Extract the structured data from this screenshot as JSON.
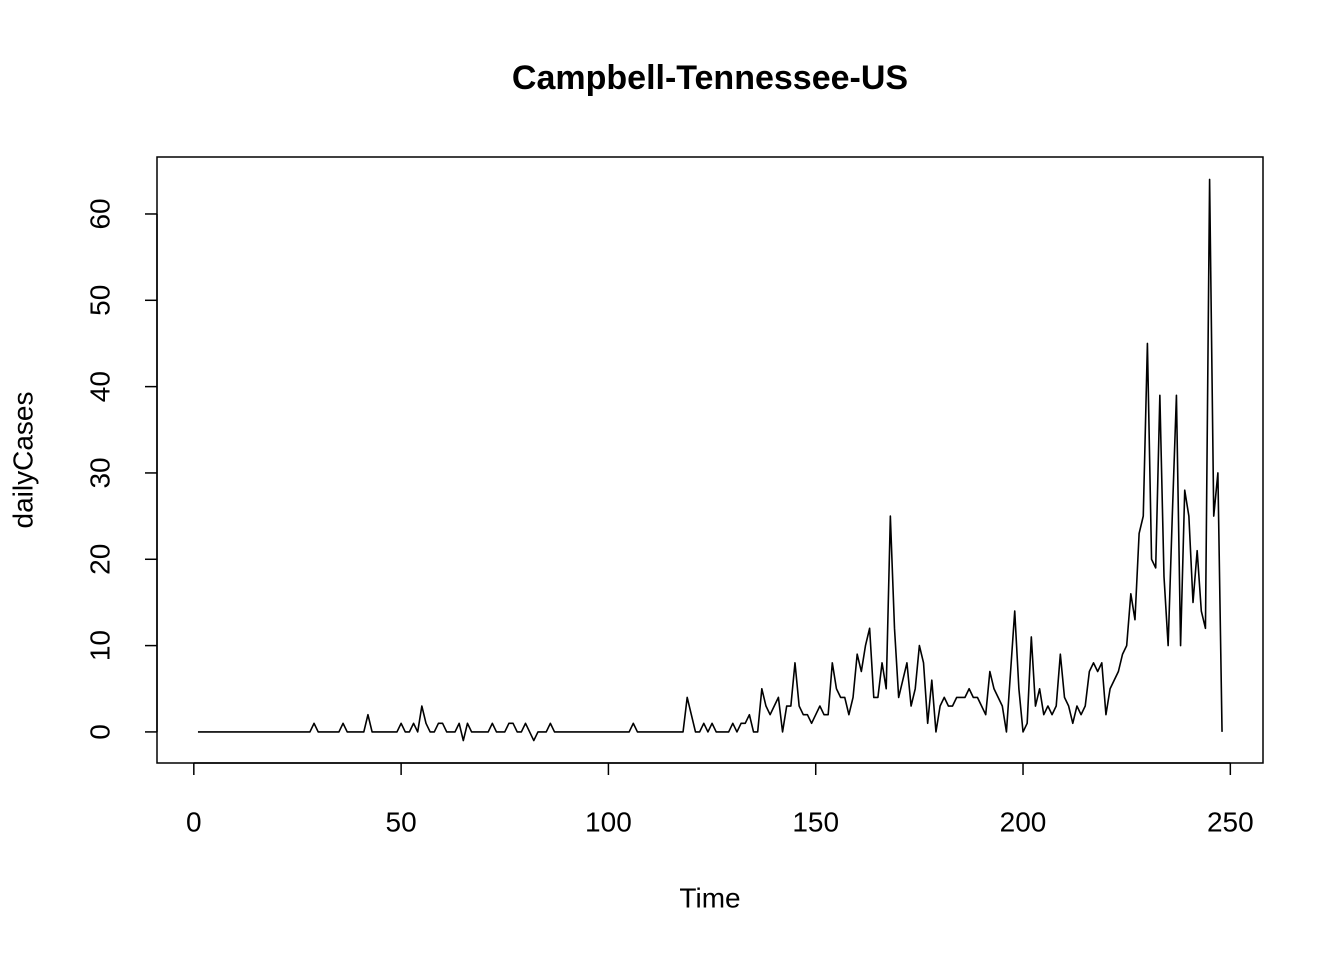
{
  "chart_data": {
    "type": "line",
    "title": "Campbell-Tennessee-US",
    "x_label": "Time",
    "y_label": "dailyCases",
    "color": "#000000",
    "x": [
      1,
      2,
      3,
      4,
      5,
      6,
      7,
      8,
      9,
      10,
      11,
      12,
      13,
      14,
      15,
      16,
      17,
      18,
      19,
      20,
      21,
      22,
      23,
      24,
      25,
      26,
      27,
      28,
      29,
      30,
      31,
      32,
      33,
      34,
      35,
      36,
      37,
      38,
      39,
      40,
      41,
      42,
      43,
      44,
      45,
      46,
      47,
      48,
      49,
      50,
      51,
      52,
      53,
      54,
      55,
      56,
      57,
      58,
      59,
      60,
      61,
      62,
      63,
      64,
      65,
      66,
      67,
      68,
      69,
      70,
      71,
      72,
      73,
      74,
      75,
      76,
      77,
      78,
      79,
      80,
      81,
      82,
      83,
      84,
      85,
      86,
      87,
      88,
      89,
      90,
      91,
      92,
      93,
      94,
      95,
      96,
      97,
      98,
      99,
      100,
      101,
      102,
      103,
      104,
      105,
      106,
      107,
      108,
      109,
      110,
      111,
      112,
      113,
      114,
      115,
      116,
      117,
      118,
      119,
      120,
      121,
      122,
      123,
      124,
      125,
      126,
      127,
      128,
      129,
      130,
      131,
      132,
      133,
      134,
      135,
      136,
      137,
      138,
      139,
      140,
      141,
      142,
      143,
      144,
      145,
      146,
      147,
      148,
      149,
      150,
      151,
      152,
      153,
      154,
      155,
      156,
      157,
      158,
      159,
      160,
      161,
      162,
      163,
      164,
      165,
      166,
      167,
      168,
      169,
      170,
      171,
      172,
      173,
      174,
      175,
      176,
      177,
      178,
      179,
      180,
      181,
      182,
      183,
      184,
      185,
      186,
      187,
      188,
      189,
      190,
      191,
      192,
      193,
      194,
      195,
      196,
      197,
      198,
      199,
      200,
      201,
      202,
      203,
      204,
      205,
      206,
      207,
      208,
      209,
      210,
      211,
      212,
      213,
      214,
      215,
      216,
      217,
      218,
      219,
      220,
      221,
      222,
      223,
      224,
      225,
      226,
      227,
      228,
      229,
      230,
      231,
      232,
      233,
      234,
      235,
      236,
      237,
      238,
      239,
      240,
      241,
      242,
      243,
      244,
      245,
      246,
      247,
      248
    ],
    "values": [
      0,
      0,
      0,
      0,
      0,
      0,
      0,
      0,
      0,
      0,
      0,
      0,
      0,
      0,
      0,
      0,
      0,
      0,
      0,
      0,
      0,
      0,
      0,
      0,
      0,
      0,
      0,
      0,
      1,
      0,
      0,
      0,
      0,
      0,
      0,
      1,
      0,
      0,
      0,
      0,
      0,
      2,
      0,
      0,
      0,
      0,
      0,
      0,
      0,
      1,
      0,
      0,
      1,
      0,
      3,
      1,
      0,
      0,
      1,
      1,
      0,
      0,
      0,
      1,
      -1,
      1,
      0,
      0,
      0,
      0,
      0,
      1,
      0,
      0,
      0,
      1,
      1,
      0,
      0,
      1,
      0,
      -1,
      0,
      0,
      0,
      1,
      0,
      0,
      0,
      0,
      0,
      0,
      0,
      0,
      0,
      0,
      0,
      0,
      0,
      0,
      0,
      0,
      0,
      0,
      0,
      1,
      0,
      0,
      0,
      0,
      0,
      0,
      0,
      0,
      0,
      0,
      0,
      0,
      4,
      2,
      0,
      0,
      1,
      0,
      1,
      0,
      0,
      0,
      0,
      1,
      0,
      1,
      1,
      2,
      0,
      0,
      5,
      3,
      2,
      3,
      4,
      0,
      3,
      3,
      8,
      3,
      2,
      2,
      1,
      2,
      3,
      2,
      2,
      8,
      5,
      4,
      4,
      2,
      4,
      9,
      7,
      10,
      12,
      4,
      4,
      8,
      5,
      25,
      12,
      4,
      6,
      8,
      3,
      5,
      10,
      8,
      1,
      6,
      0,
      3,
      4,
      3,
      3,
      4,
      4,
      4,
      5,
      4,
      4,
      3,
      2,
      7,
      5,
      4,
      3,
      0,
      7,
      14,
      5,
      0,
      1,
      11,
      3,
      5,
      2,
      3,
      2,
      3,
      9,
      4,
      3,
      1,
      3,
      2,
      3,
      7,
      8,
      7,
      8,
      2,
      5,
      6,
      7,
      9,
      10,
      16,
      13,
      23,
      25,
      45,
      20,
      19,
      39,
      18,
      10,
      25,
      39,
      10,
      28,
      25,
      15,
      21,
      14,
      12,
      64,
      25,
      30,
      0
    ],
    "xlim": [
      -8.88,
      257.88
    ],
    "xticks": [
      0,
      50,
      100,
      150,
      200,
      250
    ],
    "ylim": [
      -3.6,
      66.6
    ],
    "yticks": [
      0,
      10,
      20,
      30,
      40,
      50,
      60
    ]
  }
}
